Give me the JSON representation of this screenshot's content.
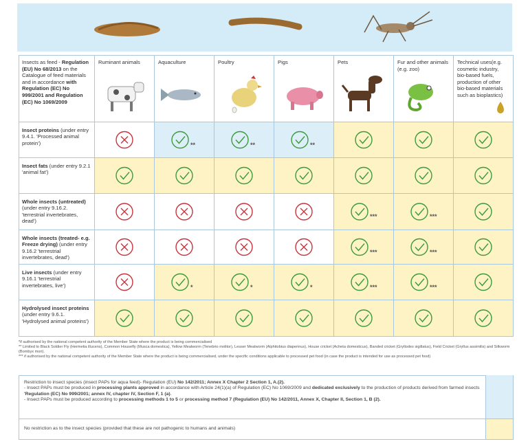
{
  "banner_alt": null,
  "header": {
    "first": [
      {
        "text": "Insects as feed - "
      },
      {
        "text": "Regulation (EU) No 68/2013",
        "bold": true
      },
      {
        "text": " on the Catalogue of feed materials and in accordance "
      },
      {
        "text": "with Regulation (EC) No 999/2001 and Regulation (EC) No 1069/2009",
        "bold": true
      }
    ],
    "columns": [
      "Ruminant animals",
      "Aquaculture",
      "Poultry",
      "Pigs",
      "Pets",
      "Fur and other animals (e.g. zoo)",
      "Technical uses(e.g. cosmetic industry, bio-based fuels, production of other bio-based materials such as bioplastics)"
    ]
  },
  "rows": [
    {
      "label": [
        {
          "text": "Insect proteins",
          "bold": true
        },
        {
          "text": " (under entry 9.4.1. 'Processed animal protein')"
        }
      ],
      "cells": [
        {
          "status": "cross",
          "fill": "#ffffff"
        },
        {
          "status": "check",
          "fill": "#dceef8",
          "note": "**"
        },
        {
          "status": "check",
          "fill": "#dceef8",
          "note": "**"
        },
        {
          "status": "check",
          "fill": "#dceef8",
          "note": "**"
        },
        {
          "status": "check",
          "fill": "#fdf3c4"
        },
        {
          "status": "check",
          "fill": "#fdf3c4"
        },
        {
          "status": "check",
          "fill": "#fdf3c4"
        }
      ]
    },
    {
      "label": [
        {
          "text": "Insect fats",
          "bold": true
        },
        {
          "text": " (under entry 9.2.1 'animal fat')"
        }
      ],
      "cells": [
        {
          "status": "check",
          "fill": "#fdf3c4"
        },
        {
          "status": "check",
          "fill": "#fdf3c4"
        },
        {
          "status": "check",
          "fill": "#fdf3c4"
        },
        {
          "status": "check",
          "fill": "#fdf3c4"
        },
        {
          "status": "check",
          "fill": "#fdf3c4"
        },
        {
          "status": "check",
          "fill": "#fdf3c4"
        },
        {
          "status": "check",
          "fill": "#fdf3c4"
        }
      ]
    },
    {
      "label": [
        {
          "text": "Whole insects (untreated)",
          "bold": true
        },
        {
          "text": " (under entry 9.16.2. 'terrestrial invertebrates, dead')"
        }
      ],
      "cells": [
        {
          "status": "cross",
          "fill": "#ffffff"
        },
        {
          "status": "cross",
          "fill": "#ffffff"
        },
        {
          "status": "cross",
          "fill": "#ffffff"
        },
        {
          "status": "cross",
          "fill": "#ffffff"
        },
        {
          "status": "check",
          "fill": "#fdf3c4",
          "note": "***"
        },
        {
          "status": "check",
          "fill": "#fdf3c4",
          "note": "***"
        },
        {
          "status": "check",
          "fill": "#fdf3c4"
        }
      ]
    },
    {
      "label": [
        {
          "text": "Whole insects (treated- e.g. Freeze drying)",
          "bold": true
        },
        {
          "text": " (under entry 9.16.2 'terrestrial invertebrates, dead')"
        }
      ],
      "cells": [
        {
          "status": "cross",
          "fill": "#ffffff"
        },
        {
          "status": "cross",
          "fill": "#ffffff"
        },
        {
          "status": "cross",
          "fill": "#ffffff"
        },
        {
          "status": "cross",
          "fill": "#ffffff"
        },
        {
          "status": "check",
          "fill": "#fdf3c4",
          "note": "***"
        },
        {
          "status": "check",
          "fill": "#fdf3c4",
          "note": "***"
        },
        {
          "status": "check",
          "fill": "#fdf3c4"
        }
      ]
    },
    {
      "label": [
        {
          "text": "Live insects",
          "bold": true
        },
        {
          "text": " (under entry 9.16.1 'terrestrial invertebrates, live')"
        }
      ],
      "cells": [
        {
          "status": "cross",
          "fill": "#ffffff"
        },
        {
          "status": "check",
          "fill": "#fdf3c4",
          "note": "*"
        },
        {
          "status": "check",
          "fill": "#fdf3c4",
          "note": "*"
        },
        {
          "status": "check",
          "fill": "#fdf3c4",
          "note": "*"
        },
        {
          "status": "check",
          "fill": "#fdf3c4",
          "note": "***"
        },
        {
          "status": "check",
          "fill": "#fdf3c4",
          "note": "***"
        },
        {
          "status": "check",
          "fill": "#fdf3c4"
        }
      ]
    },
    {
      "label": [
        {
          "text": "Hydrolysed insect proteins",
          "bold": true
        },
        {
          "text": " (under entry 9.6.1. 'Hydrolysed animal proteins')"
        }
      ],
      "cells": [
        {
          "status": "check",
          "fill": "#fdf3c4"
        },
        {
          "status": "check",
          "fill": "#fdf3c4"
        },
        {
          "status": "check",
          "fill": "#fdf3c4"
        },
        {
          "status": "check",
          "fill": "#fdf3c4"
        },
        {
          "status": "check",
          "fill": "#fdf3c4"
        },
        {
          "status": "check",
          "fill": "#fdf3c4"
        },
        {
          "status": "check",
          "fill": "#fdf3c4"
        }
      ]
    }
  ],
  "footnotes": [
    "*if authorised by the national competent authority of the Member State where the product is being commercialised",
    "** Limited to Black Soldier Fly (Hermetia illucens), Common Housefly (Musca domestica), Yellow Mealworm (Tenebrio molitor), Lesser Mealworm (Alphitobius diaperinus), House cricket (Acheta domesticus), Banded cricket (Gryllodes sigillatus), Field Cricket (Gryllus assimilis) and Silkworm (Bombyx mori).",
    "*** if authorised by the national competent authority of the Member State where the product is being commercialised, under the specific conditions applicable to processed pet food (in case the product is intended for use as processed pet food)"
  ],
  "legend": [
    {
      "color": "#dceef8",
      "paragraphs": [
        [
          {
            "text": "Restriction to insect species (insect PAPs for aqua feed)- Regulation (EU) "
          },
          {
            "text": "No 142/2011; Annex X Chapter 2  Section 1, A.(2).",
            "bold": true
          }
        ],
        [
          {
            "text": "- Insect PAPs must be produced in "
          },
          {
            "text": "processing plants approved",
            "bold": true
          },
          {
            "text": " in accordance with Article 24(1)(a) of Regulation (EC) No 1069/2009 and "
          },
          {
            "text": "dedicated exclusively",
            "bold": true
          },
          {
            "text": " to the production of products derived from farmed insects "
          },
          {
            "text": "'Regulation (EC) No 999/2001; annex IV, chapter IV, Section F, 1 (a)",
            "bold": true
          },
          {
            "text": "."
          }
        ],
        [
          {
            "text": "- Insect PAPs must be produced according to "
          },
          {
            "text": "processing methods 1 to 5",
            "bold": true
          },
          {
            "text": " or "
          },
          {
            "text": "processing method 7 (Regulation (EU) No 142/2011, Annex X, Chapter II, Section 1, B (2).",
            "bold": true
          }
        ]
      ]
    },
    {
      "color": "#fdf3c4",
      "paragraphs": [
        [
          {
            "text": "No restriction as to the insect species (provided that these are not pathogenic to humans and animals)"
          }
        ]
      ]
    }
  ]
}
